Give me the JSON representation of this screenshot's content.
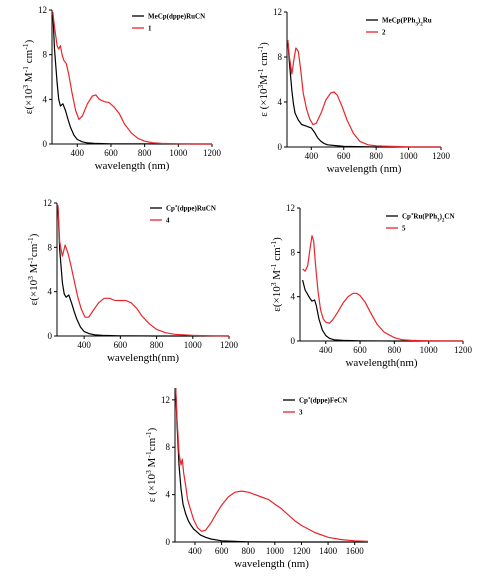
{
  "chart_data": [
    {
      "type": "line",
      "xlabel": "wavelength (nm)",
      "ylabel": "ε(×10³ M⁻¹ cm⁻¹)",
      "xlim": [
        250,
        1200
      ],
      "ylim": [
        0,
        12
      ],
      "xticks": [
        400,
        600,
        800,
        1000,
        1200
      ],
      "yticks": [
        0,
        4,
        8,
        12
      ],
      "legend_position": "top-right",
      "series": [
        {
          "name": "MeCp(dppe)RuCN",
          "color": "#000000",
          "x": [
            255,
            265,
            280,
            290,
            300,
            315,
            330,
            345,
            360,
            380,
            400,
            430,
            460,
            500,
            600,
            800,
            1000,
            1200
          ],
          "y": [
            11.8,
            8.5,
            5.5,
            4.0,
            3.4,
            3.6,
            3.0,
            2.2,
            1.5,
            0.8,
            0.4,
            0.2,
            0.1,
            0.05,
            0.02,
            0.01,
            0.0,
            0.0
          ]
        },
        {
          "name": "1",
          "color": "#e8262b",
          "x": [
            255,
            265,
            280,
            290,
            300,
            310,
            320,
            335,
            350,
            370,
            390,
            410,
            430,
            460,
            490,
            510,
            530,
            560,
            590,
            620,
            650,
            680,
            720,
            760,
            800,
            850,
            900,
            1000,
            1100,
            1200
          ],
          "y": [
            11.8,
            10.5,
            8.8,
            8.5,
            8.8,
            8.0,
            7.5,
            7.2,
            6.2,
            4.5,
            3.0,
            2.2,
            2.5,
            3.6,
            4.3,
            4.4,
            4.0,
            3.8,
            3.7,
            3.3,
            2.7,
            1.8,
            1.0,
            0.5,
            0.25,
            0.1,
            0.05,
            0.02,
            0.0,
            0.0
          ]
        }
      ]
    },
    {
      "type": "line",
      "xlabel": "wavelength (nm)",
      "ylabel": "ε (×10³M⁻¹ cm⁻¹)",
      "xlim": [
        250,
        1200
      ],
      "ylim": [
        0,
        12
      ],
      "xticks": [
        400,
        600,
        800,
        1000,
        1200
      ],
      "yticks": [
        0,
        4,
        8,
        12
      ],
      "legend_position": "top-right",
      "series": [
        {
          "name": "MeCp(PPh₃)₂Ru",
          "color": "#000000",
          "x": [
            255,
            265,
            280,
            290,
            300,
            320,
            340,
            360,
            380,
            400,
            420,
            440,
            460,
            480,
            500,
            600,
            800,
            1000,
            1200
          ],
          "y": [
            9.5,
            7.5,
            5.0,
            3.8,
            3.0,
            2.4,
            2.0,
            1.9,
            1.8,
            1.7,
            1.3,
            0.8,
            0.5,
            0.3,
            0.2,
            0.05,
            0.0,
            0.0,
            0.0
          ]
        },
        {
          "name": "2",
          "color": "#e8262b",
          "x": [
            255,
            265,
            280,
            295,
            305,
            320,
            335,
            350,
            370,
            390,
            410,
            430,
            460,
            490,
            520,
            540,
            560,
            590,
            620,
            660,
            700,
            750,
            800,
            900,
            1000,
            1200
          ],
          "y": [
            9.5,
            8.0,
            6.5,
            8.0,
            8.8,
            8.5,
            6.8,
            4.8,
            3.4,
            2.5,
            2.0,
            2.1,
            3.0,
            4.2,
            4.8,
            4.9,
            4.6,
            3.6,
            2.4,
            1.2,
            0.5,
            0.2,
            0.1,
            0.05,
            0.0,
            0.0
          ]
        }
      ]
    },
    {
      "type": "line",
      "xlabel": "wavelength(nm)",
      "ylabel": "ε(×10³ M⁻¹cm⁻¹)",
      "xlim": [
        250,
        1200
      ],
      "ylim": [
        0,
        12
      ],
      "xticks": [
        400,
        600,
        800,
        1000,
        1200
      ],
      "yticks": [
        0,
        4,
        8,
        12
      ],
      "legend_position": "top-right",
      "series": [
        {
          "name": "Cp*(dppe)RuCN",
          "color": "#000000",
          "x": [
            255,
            265,
            280,
            290,
            300,
            315,
            330,
            345,
            360,
            380,
            400,
            430,
            460,
            500,
            600,
            800,
            1000,
            1200
          ],
          "y": [
            11.8,
            7.8,
            4.8,
            3.8,
            3.5,
            3.7,
            3.0,
            2.2,
            1.5,
            0.8,
            0.4,
            0.2,
            0.1,
            0.05,
            0.02,
            0.0,
            0.0,
            0.0
          ]
        },
        {
          "name": "4",
          "color": "#e8262b",
          "x": [
            255,
            265,
            280,
            295,
            310,
            325,
            345,
            365,
            385,
            405,
            425,
            450,
            480,
            510,
            540,
            570,
            600,
            630,
            660,
            690,
            720,
            760,
            800,
            850,
            900,
            1000,
            1100,
            1200
          ],
          "y": [
            11.8,
            8.5,
            7.2,
            8.2,
            7.5,
            6.5,
            5.0,
            3.5,
            2.4,
            1.7,
            1.7,
            2.3,
            3.0,
            3.4,
            3.4,
            3.2,
            3.2,
            3.2,
            3.0,
            2.5,
            1.8,
            1.1,
            0.6,
            0.3,
            0.15,
            0.05,
            0.02,
            0.0
          ]
        }
      ]
    },
    {
      "type": "line",
      "xlabel": "wavelength(nm)",
      "ylabel": "ε(×10³ M⁻¹ cm⁻¹)",
      "xlim": [
        250,
        1200
      ],
      "ylim": [
        0,
        12
      ],
      "xticks": [
        400,
        600,
        800,
        1000,
        1200
      ],
      "yticks": [
        0,
        4,
        8,
        12
      ],
      "legend_position": "top-right",
      "series": [
        {
          "name": "Cp*Ru(PPh₃)₂CN",
          "color": "#000000",
          "x": [
            265,
            280,
            295,
            310,
            320,
            335,
            345,
            360,
            380,
            400,
            420,
            450,
            500,
            600,
            800,
            1000,
            1200
          ],
          "y": [
            5.5,
            4.6,
            4.2,
            3.8,
            3.6,
            3.7,
            3.2,
            2.0,
            1.0,
            0.5,
            0.25,
            0.1,
            0.05,
            0.02,
            0.0,
            0.0,
            0.0
          ]
        },
        {
          "name": "5",
          "color": "#e8262b",
          "x": [
            265,
            280,
            295,
            310,
            320,
            330,
            340,
            355,
            370,
            385,
            400,
            420,
            440,
            470,
            500,
            530,
            560,
            580,
            600,
            630,
            660,
            700,
            740,
            800,
            850,
            900,
            1000,
            1200
          ],
          "y": [
            6.5,
            6.3,
            6.8,
            8.5,
            9.5,
            9.0,
            7.0,
            4.5,
            2.8,
            2.0,
            1.7,
            1.6,
            1.9,
            2.6,
            3.4,
            4.0,
            4.3,
            4.3,
            4.1,
            3.5,
            2.6,
            1.5,
            0.8,
            0.3,
            0.1,
            0.05,
            0.02,
            0.0
          ]
        }
      ]
    },
    {
      "type": "line",
      "xlabel": "wavelength (nm)",
      "ylabel": "ε (×10³ M⁻¹cm⁻¹)",
      "xlim": [
        250,
        1700
      ],
      "ylim": [
        0,
        13
      ],
      "xticks": [
        400,
        600,
        800,
        1000,
        1200,
        1400,
        1600
      ],
      "yticks": [
        0,
        4,
        8,
        12
      ],
      "legend_position": "top-right",
      "series": [
        {
          "name": "Cp*(dppe)FeCN",
          "color": "#000000",
          "x": [
            255,
            265,
            280,
            295,
            310,
            330,
            350,
            370,
            390,
            410,
            440,
            480,
            520,
            600,
            800,
            1000,
            1200,
            1400,
            1700
          ],
          "y": [
            13.0,
            10.0,
            6.5,
            4.5,
            3.2,
            2.4,
            1.8,
            1.4,
            1.1,
            0.9,
            0.6,
            0.4,
            0.25,
            0.1,
            0.02,
            0.0,
            0.0,
            0.0,
            0.0
          ]
        },
        {
          "name": "3",
          "color": "#e8262b",
          "x": [
            255,
            265,
            280,
            295,
            305,
            315,
            330,
            345,
            365,
            390,
            420,
            450,
            480,
            520,
            560,
            600,
            650,
            700,
            750,
            800,
            850,
            900,
            950,
            1000,
            1050,
            1100,
            1150,
            1200,
            1300,
            1400,
            1500,
            1600,
            1700
          ],
          "y": [
            13.0,
            10.5,
            7.5,
            6.5,
            7.0,
            5.8,
            4.8,
            3.6,
            2.8,
            1.9,
            1.2,
            0.9,
            1.0,
            1.6,
            2.4,
            3.1,
            3.8,
            4.2,
            4.3,
            4.2,
            4.0,
            3.8,
            3.6,
            3.2,
            2.8,
            2.3,
            1.8,
            1.4,
            0.8,
            0.4,
            0.2,
            0.1,
            0.05
          ]
        }
      ]
    }
  ]
}
